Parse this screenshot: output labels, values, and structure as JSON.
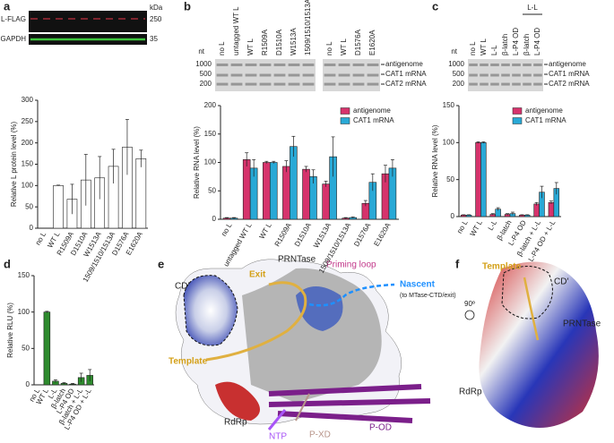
{
  "panel_labels": [
    "a",
    "b",
    "c",
    "d",
    "e",
    "f"
  ],
  "blot": {
    "rows": [
      "L-FLAG",
      "GAPDH"
    ],
    "unit": "kDa",
    "markers": [
      "250",
      "35"
    ]
  },
  "gels": [
    {
      "lanes": [
        "no L",
        "untagged WT L",
        "WT L",
        "R1509A",
        "D1510A",
        "W1513A",
        "1509/1510/1513A",
        "no L",
        "WT L",
        "D1576A",
        "E1620A"
      ],
      "unit": "nt",
      "markers": [
        "1000",
        "500",
        "200"
      ],
      "bands": [
        "antigenome",
        "CAT1 mRNA",
        "CAT2 mRNA"
      ]
    },
    {
      "lanes": [
        "no L",
        "WT L",
        "L-L",
        "β-latch",
        "L-P4 OD",
        "β-latch",
        "L-P4 OD"
      ],
      "header": "L-L",
      "unit": "nt",
      "markers": [
        "1000",
        "500",
        "200"
      ],
      "bands": [
        "antigenome",
        "CAT1 mRNA",
        "CAT2 mRNA"
      ]
    }
  ],
  "chart_data": [
    {
      "type": "bar",
      "ylabel": "Relative L protein level (%)",
      "categories": [
        "no L",
        "WT L",
        "R1509A",
        "D1510A",
        "W1513A",
        "1509/1510/1513A",
        "D1576A",
        "E1620A"
      ],
      "values": [
        0,
        100,
        68,
        113,
        118,
        145,
        190,
        163
      ],
      "errors": [
        0,
        1,
        35,
        60,
        50,
        40,
        65,
        20
      ],
      "color": "#ffffff",
      "ylim": [
        0,
        300
      ],
      "yticks": [
        0,
        50,
        100,
        150,
        200,
        250,
        300
      ]
    },
    {
      "type": "bar",
      "ylabel": "Relative RNA level (%)",
      "categories": [
        "no L",
        "untagged WT L",
        "WT L",
        "R1509A",
        "D1510A",
        "W1513A",
        "1509/1510/1513A",
        "D1576A",
        "E1620A"
      ],
      "series": [
        {
          "name": "antigenome",
          "color": "#d6336c",
          "values": [
            2,
            105,
            100,
            93,
            88,
            62,
            2,
            28,
            80
          ],
          "errors": [
            1,
            12,
            2,
            10,
            5,
            5,
            1,
            5,
            15
          ]
        },
        {
          "name": "CAT1 mRNA",
          "color": "#29a9d6",
          "values": [
            2,
            90,
            100,
            128,
            75,
            110,
            3,
            65,
            90
          ],
          "errors": [
            1,
            15,
            2,
            18,
            12,
            35,
            1,
            15,
            15
          ]
        }
      ],
      "ylim": [
        0,
        200
      ],
      "yticks": [
        0,
        50,
        100,
        150,
        200
      ]
    },
    {
      "type": "bar",
      "ylabel": "Relative RNA level (%)",
      "categories": [
        "no L",
        "WT L",
        "L-L",
        "β-latch",
        "L-P4 OD",
        "β-latch + L-L",
        "L-P4 OD + L-L"
      ],
      "series": [
        {
          "name": "antigenome",
          "color": "#d6336c",
          "values": [
            2,
            100,
            3,
            3,
            2,
            17,
            19
          ],
          "errors": [
            0.5,
            1,
            1,
            1,
            0.5,
            2,
            2
          ]
        },
        {
          "name": "CAT1 mRNA",
          "color": "#29a9d6",
          "values": [
            2,
            100,
            10,
            4,
            2,
            33,
            38
          ],
          "errors": [
            0.5,
            1,
            2,
            2,
            0.5,
            8,
            8
          ]
        }
      ],
      "ylim": [
        0,
        150
      ],
      "yticks": [
        0,
        50,
        100,
        150
      ]
    },
    {
      "type": "bar",
      "ylabel": "Relative RLU (%)",
      "categories": [
        "no L",
        "WT L",
        "L-L",
        "β-latch",
        "L-P4 OD",
        "β-latch + L-L",
        "L-P4 OD + L-L"
      ],
      "values": [
        0,
        100,
        5,
        2,
        1,
        10,
        13
      ],
      "errors": [
        0,
        1,
        2,
        1,
        1,
        6,
        8
      ],
      "color": "#2e8b2e",
      "ylim": [
        0,
        150
      ],
      "yticks": [
        0,
        50,
        100,
        150
      ]
    }
  ],
  "structure_e": {
    "cd": "CD′",
    "prntase": "PRNTase",
    "priming": "Priming loop",
    "exit": "Exit",
    "nascent": "Nascent",
    "nascent_note": "(to MTase-CTD/exit)",
    "template": "Template",
    "rdrp": "RdRp",
    "ntp": "NTP",
    "pxd": "P-XD",
    "pod": "P-OD"
  },
  "structure_f": {
    "template": "Template",
    "cd": "CD′",
    "rotation": "90º",
    "prntase": "PRNTase",
    "rdrp": "RdRp"
  }
}
